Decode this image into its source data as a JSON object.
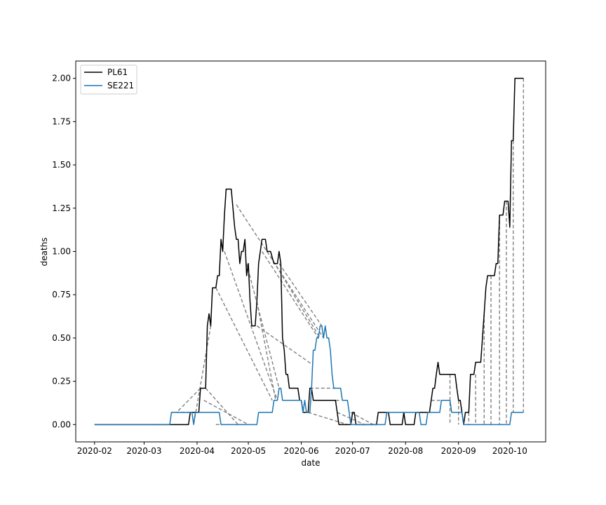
{
  "chart_data": {
    "type": "line",
    "xlabel": "date",
    "ylabel": "deaths",
    "x_ticks": [
      "2020-02",
      "2020-03",
      "2020-04",
      "2020-05",
      "2020-06",
      "2020-07",
      "2020-08",
      "2020-09",
      "2020-10"
    ],
    "y_ticks": [
      "0.00",
      "0.25",
      "0.50",
      "0.75",
      "1.00",
      "1.25",
      "1.50",
      "1.75",
      "2.00"
    ],
    "xlim": [
      "2020-01-21",
      "2020-10-22"
    ],
    "ylim": [
      -0.1,
      2.1
    ],
    "grid": false,
    "legend_position": "top-left",
    "series": [
      {
        "name": "PL61",
        "color": "#000000",
        "points": [
          [
            "2020-02-01",
            0
          ],
          [
            "2020-03-20",
            0
          ],
          [
            "2020-03-27",
            0
          ],
          [
            "2020-03-28",
            0.07
          ],
          [
            "2020-04-02",
            0.07
          ],
          [
            "2020-04-03",
            0.21
          ],
          [
            "2020-04-06",
            0.21
          ],
          [
            "2020-04-07",
            0.57
          ],
          [
            "2020-04-08",
            0.64
          ],
          [
            "2020-04-09",
            0.57
          ],
          [
            "2020-04-10",
            0.79
          ],
          [
            "2020-04-11",
            0.79
          ],
          [
            "2020-04-12",
            0.79
          ],
          [
            "2020-04-13",
            0.86
          ],
          [
            "2020-04-14",
            0.86
          ],
          [
            "2020-04-15",
            1.07
          ],
          [
            "2020-04-16",
            1.0
          ],
          [
            "2020-04-17",
            1.21
          ],
          [
            "2020-04-18",
            1.36
          ],
          [
            "2020-04-21",
            1.36
          ],
          [
            "2020-04-23",
            1.14
          ],
          [
            "2020-04-24",
            1.07
          ],
          [
            "2020-04-25",
            1.07
          ],
          [
            "2020-04-26",
            0.93
          ],
          [
            "2020-04-27",
            1.0
          ],
          [
            "2020-04-28",
            1.0
          ],
          [
            "2020-04-29",
            1.07
          ],
          [
            "2020-04-30",
            0.86
          ],
          [
            "2020-05-01",
            0.93
          ],
          [
            "2020-05-02",
            0.71
          ],
          [
            "2020-05-03",
            0.57
          ],
          [
            "2020-05-05",
            0.57
          ],
          [
            "2020-05-06",
            0.71
          ],
          [
            "2020-05-07",
            0.93
          ],
          [
            "2020-05-09",
            1.07
          ],
          [
            "2020-05-11",
            1.07
          ],
          [
            "2020-05-12",
            1.0
          ],
          [
            "2020-05-14",
            1.0
          ],
          [
            "2020-05-16",
            0.93
          ],
          [
            "2020-05-18",
            0.93
          ],
          [
            "2020-05-19",
            1.0
          ],
          [
            "2020-05-20",
            0.93
          ],
          [
            "2020-05-21",
            0.5
          ],
          [
            "2020-05-22",
            0.43
          ],
          [
            "2020-05-23",
            0.29
          ],
          [
            "2020-05-24",
            0.29
          ],
          [
            "2020-05-25",
            0.21
          ],
          [
            "2020-05-30",
            0.21
          ],
          [
            "2020-05-31",
            0.14
          ],
          [
            "2020-06-01",
            0.14
          ],
          [
            "2020-06-02",
            0.07
          ],
          [
            "2020-06-05",
            0.07
          ],
          [
            "2020-06-06",
            0.21
          ],
          [
            "2020-06-07",
            0.21
          ],
          [
            "2020-06-08",
            0.14
          ],
          [
            "2020-06-21",
            0.14
          ],
          [
            "2020-06-22",
            0.07
          ],
          [
            "2020-06-23",
            0.0
          ],
          [
            "2020-06-30",
            0.0
          ],
          [
            "2020-07-01",
            0.07
          ],
          [
            "2020-07-02",
            0.07
          ],
          [
            "2020-07-03",
            0.0
          ],
          [
            "2020-07-15",
            0.0
          ],
          [
            "2020-07-16",
            0.07
          ],
          [
            "2020-07-22",
            0.07
          ],
          [
            "2020-07-23",
            0.0
          ],
          [
            "2020-07-30",
            0.0
          ],
          [
            "2020-07-31",
            0.07
          ],
          [
            "2020-08-01",
            0.0
          ],
          [
            "2020-08-06",
            0.0
          ],
          [
            "2020-08-07",
            0.07
          ],
          [
            "2020-08-15",
            0.07
          ],
          [
            "2020-08-16",
            0.14
          ],
          [
            "2020-08-17",
            0.21
          ],
          [
            "2020-08-18",
            0.21
          ],
          [
            "2020-08-19",
            0.29
          ],
          [
            "2020-08-20",
            0.36
          ],
          [
            "2020-08-21",
            0.29
          ],
          [
            "2020-08-30",
            0.29
          ],
          [
            "2020-08-31",
            0.21
          ],
          [
            "2020-09-01",
            0.14
          ],
          [
            "2020-09-02",
            0.14
          ],
          [
            "2020-09-03",
            0.07
          ],
          [
            "2020-09-04",
            0.0
          ],
          [
            "2020-09-05",
            0.07
          ],
          [
            "2020-09-07",
            0.07
          ],
          [
            "2020-09-08",
            0.29
          ],
          [
            "2020-09-10",
            0.29
          ],
          [
            "2020-09-11",
            0.36
          ],
          [
            "2020-09-14",
            0.36
          ],
          [
            "2020-09-15",
            0.5
          ],
          [
            "2020-09-16",
            0.64
          ],
          [
            "2020-09-17",
            0.79
          ],
          [
            "2020-09-18",
            0.86
          ],
          [
            "2020-09-22",
            0.86
          ],
          [
            "2020-09-23",
            0.93
          ],
          [
            "2020-09-24",
            0.93
          ],
          [
            "2020-09-25",
            1.21
          ],
          [
            "2020-09-27",
            1.21
          ],
          [
            "2020-09-28",
            1.29
          ],
          [
            "2020-09-30",
            1.29
          ],
          [
            "2020-10-01",
            1.14
          ],
          [
            "2020-10-02",
            1.64
          ],
          [
            "2020-10-03",
            1.64
          ],
          [
            "2020-10-04",
            2.0
          ],
          [
            "2020-10-09",
            2.0
          ]
        ]
      },
      {
        "name": "SE221",
        "color": "#1f77b4",
        "points": [
          [
            "2020-02-01",
            0
          ],
          [
            "2020-03-16",
            0
          ],
          [
            "2020-03-17",
            0.07
          ],
          [
            "2020-03-29",
            0.07
          ],
          [
            "2020-03-30",
            0.0
          ],
          [
            "2020-03-31",
            0.07
          ],
          [
            "2020-04-14",
            0.07
          ],
          [
            "2020-04-15",
            0.0
          ],
          [
            "2020-05-06",
            0.0
          ],
          [
            "2020-05-07",
            0.07
          ],
          [
            "2020-05-15",
            0.07
          ],
          [
            "2020-05-16",
            0.14
          ],
          [
            "2020-05-18",
            0.14
          ],
          [
            "2020-05-19",
            0.21
          ],
          [
            "2020-05-20",
            0.21
          ],
          [
            "2020-05-21",
            0.14
          ],
          [
            "2020-06-01",
            0.14
          ],
          [
            "2020-06-02",
            0.07
          ],
          [
            "2020-06-03",
            0.14
          ],
          [
            "2020-06-04",
            0.07
          ],
          [
            "2020-06-06",
            0.07
          ],
          [
            "2020-06-07",
            0.21
          ],
          [
            "2020-06-08",
            0.43
          ],
          [
            "2020-06-09",
            0.43
          ],
          [
            "2020-06-10",
            0.5
          ],
          [
            "2020-06-11",
            0.5
          ],
          [
            "2020-06-12",
            0.57
          ],
          [
            "2020-06-13",
            0.57
          ],
          [
            "2020-06-14",
            0.5
          ],
          [
            "2020-06-15",
            0.57
          ],
          [
            "2020-06-16",
            0.5
          ],
          [
            "2020-06-17",
            0.5
          ],
          [
            "2020-06-18",
            0.43
          ],
          [
            "2020-06-19",
            0.29
          ],
          [
            "2020-06-20",
            0.21
          ],
          [
            "2020-06-24",
            0.21
          ],
          [
            "2020-06-25",
            0.14
          ],
          [
            "2020-06-28",
            0.14
          ],
          [
            "2020-06-29",
            0.07
          ],
          [
            "2020-06-30",
            0.0
          ],
          [
            "2020-07-20",
            0.0
          ],
          [
            "2020-07-21",
            0.07
          ],
          [
            "2020-08-09",
            0.07
          ],
          [
            "2020-08-10",
            0.0
          ],
          [
            "2020-08-13",
            0.0
          ],
          [
            "2020-08-14",
            0.07
          ],
          [
            "2020-08-21",
            0.07
          ],
          [
            "2020-08-22",
            0.14
          ],
          [
            "2020-08-27",
            0.14
          ],
          [
            "2020-08-28",
            0.07
          ],
          [
            "2020-09-03",
            0.07
          ],
          [
            "2020-09-04",
            0.0
          ],
          [
            "2020-10-01",
            0.0
          ],
          [
            "2020-10-02",
            0.07
          ],
          [
            "2020-10-09",
            0.07
          ]
        ]
      }
    ],
    "alignment_lines": {
      "color": "#808080",
      "style": "dashed",
      "pairs": [
        [
          [
            "2020-03-27",
            0
          ],
          [
            "2020-03-05",
            0
          ]
        ],
        [
          [
            "2020-03-28",
            0.07
          ],
          [
            "2020-03-17",
            0.07
          ]
        ],
        [
          [
            "2020-04-03",
            0.21
          ],
          [
            "2020-03-20",
            0.07
          ]
        ],
        [
          [
            "2020-04-06",
            0.21
          ],
          [
            "2020-04-25",
            0.0
          ]
        ],
        [
          [
            "2020-04-09",
            0.57
          ],
          [
            "2020-03-30",
            0.0
          ]
        ],
        [
          [
            "2020-04-05",
            0.14
          ],
          [
            "2020-05-01",
            0.0
          ]
        ],
        [
          [
            "2020-04-12",
            0.79
          ],
          [
            "2020-05-15",
            0.14
          ]
        ],
        [
          [
            "2020-04-17",
            1.0
          ],
          [
            "2020-05-18",
            0.14
          ]
        ],
        [
          [
            "2020-04-24",
            1.27
          ],
          [
            "2020-06-14",
            0.5
          ]
        ],
        [
          [
            "2020-04-30",
            0.93
          ],
          [
            "2020-05-19",
            0.21
          ]
        ],
        [
          [
            "2020-05-06",
            0.71
          ],
          [
            "2020-05-17",
            0.14
          ]
        ],
        [
          [
            "2020-05-09",
            1.0
          ],
          [
            "2020-06-11",
            0.5
          ]
        ],
        [
          [
            "2020-05-14",
            0.97
          ],
          [
            "2020-06-12",
            0.5
          ]
        ],
        [
          [
            "2020-05-19",
            0.93
          ],
          [
            "2020-06-13",
            0.57
          ]
        ],
        [
          [
            "2020-05-06",
            0.57
          ],
          [
            "2020-06-07",
            0.35
          ]
        ],
        [
          [
            "2020-06-06",
            0.21
          ],
          [
            "2020-06-21",
            0.21
          ]
        ],
        [
          [
            "2020-06-08",
            0.14
          ],
          [
            "2020-06-24",
            0.14
          ]
        ],
        [
          [
            "2020-06-22",
            0.07
          ],
          [
            "2020-07-08",
            0.0
          ]
        ],
        [
          [
            "2020-06-05",
            0.07
          ],
          [
            "2020-06-28",
            0.0
          ]
        ],
        [
          [
            "2020-06-30",
            0.07
          ],
          [
            "2020-07-13",
            0.0
          ]
        ],
        [
          [
            "2020-04-12",
            0.0
          ],
          [
            "2020-05-01",
            0.0
          ]
        ],
        [
          [
            "2020-08-16",
            0.14
          ],
          [
            "2020-08-22",
            0.14
          ]
        ],
        [
          [
            "2020-08-27",
            0.29
          ],
          [
            "2020-08-27",
            0.0
          ]
        ],
        [
          [
            "2020-09-01",
            0.14
          ],
          [
            "2020-09-01",
            0.0
          ]
        ],
        [
          [
            "2020-09-07",
            0.07
          ],
          [
            "2020-09-07",
            0.0
          ]
        ],
        [
          [
            "2020-09-11",
            0.29
          ],
          [
            "2020-09-11",
            0.0
          ]
        ],
        [
          [
            "2020-09-16",
            0.64
          ],
          [
            "2020-09-16",
            0.0
          ]
        ],
        [
          [
            "2020-09-20",
            0.86
          ],
          [
            "2020-09-20",
            0.0
          ]
        ],
        [
          [
            "2020-09-25",
            1.21
          ],
          [
            "2020-09-25",
            0.0
          ]
        ],
        [
          [
            "2020-09-29",
            1.29
          ],
          [
            "2020-09-29",
            0.0
          ]
        ],
        [
          [
            "2020-10-03",
            1.64
          ],
          [
            "2020-10-03",
            0.07
          ]
        ],
        [
          [
            "2020-10-09",
            2.0
          ],
          [
            "2020-10-09",
            0.07
          ]
        ]
      ]
    }
  }
}
